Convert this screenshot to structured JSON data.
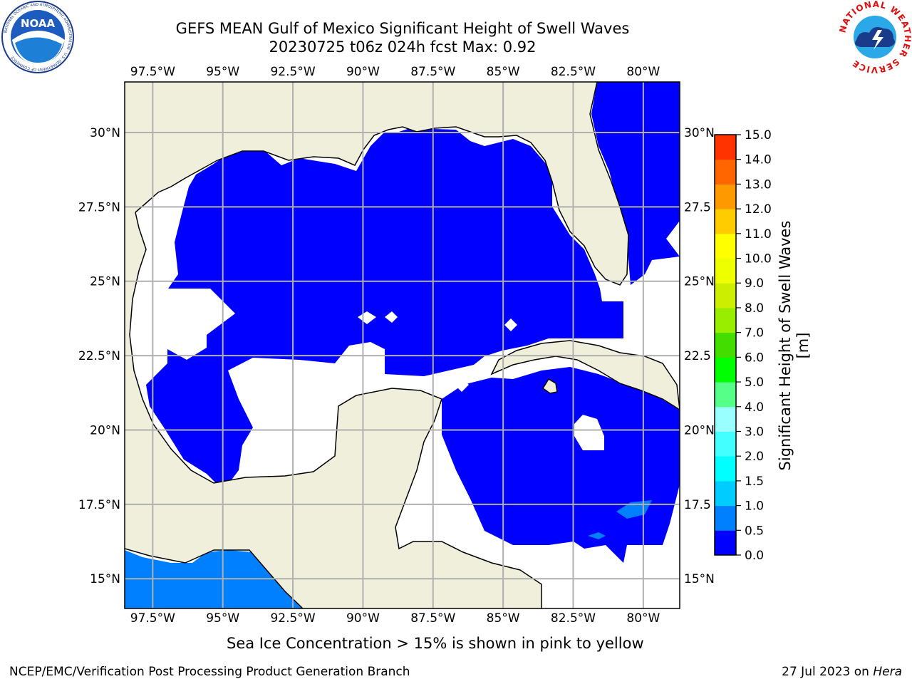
{
  "header": {
    "title": "GEFS MEAN Gulf of Mexico Significant Height of Swell Waves",
    "subtitle": "20230725 t06z 024h fcst   Max: 0.92"
  },
  "map": {
    "lon_range": [
      -98.5,
      -78.7
    ],
    "lat_range": [
      14.0,
      31.7
    ],
    "lon_ticks": [
      -97.5,
      -95,
      -92.5,
      -90,
      -87.5,
      -85,
      -82.5,
      -80
    ],
    "lon_labels": [
      "97.5°W",
      "95°W",
      "92.5°W",
      "90°W",
      "87.5°W",
      "85°W",
      "82.5°W",
      "80°W"
    ],
    "lat_ticks": [
      30,
      27.5,
      25,
      22.5,
      20,
      17.5,
      15
    ],
    "lat_labels_left": [
      "30°N",
      "27.5°N",
      "25°N",
      "22.5°N",
      "20°N",
      "17.5°N",
      "15°N"
    ],
    "lat_labels_right": [
      "30°N",
      "27.5",
      "25°N",
      "22.5",
      "20°N",
      "17.5",
      "15°N"
    ],
    "land_color": "#efefdc",
    "water_blank_color": "#ffffff",
    "gridline_color": "#b0b0b0"
  },
  "colorbar": {
    "label": "Significant Height of Swell Waves [m]",
    "tick_values": [
      "0.0",
      "0.5",
      "1.0",
      "1.5",
      "2.0",
      "3.0",
      "4.0",
      "5.0",
      "6.0",
      "7.0",
      "8.0",
      "9.0",
      "10.0",
      "11.0",
      "12.0",
      "13.0",
      "14.0",
      "15.0"
    ],
    "colors": [
      "#0000ff",
      "#0080ff",
      "#00ccff",
      "#00ffff",
      "#44ffff",
      "#99ffff",
      "#55ff88",
      "#00ff00",
      "#44dd00",
      "#99ee00",
      "#ccee00",
      "#eeff00",
      "#ffff00",
      "#ffcc00",
      "#ff9900",
      "#ff6600",
      "#ff3300",
      "#ff0000"
    ]
  },
  "footer": {
    "note": "Sea Ice Concentration > 15% is shown in pink to yellow",
    "credit": "NCEP/EMC/Verification Post Processing Product Generation Branch",
    "date": "27 Jul 2023 on ",
    "host": "Hera"
  },
  "logos": {
    "left_text": "NOAA",
    "left_ring_text": "NATIONAL OCEANIC AND ATMOSPHERIC ADMINISTRATION · U.S. DEPARTMENT OF COMMERCE",
    "right_ring_text": "NATIONAL WEATHER SERVICE"
  }
}
